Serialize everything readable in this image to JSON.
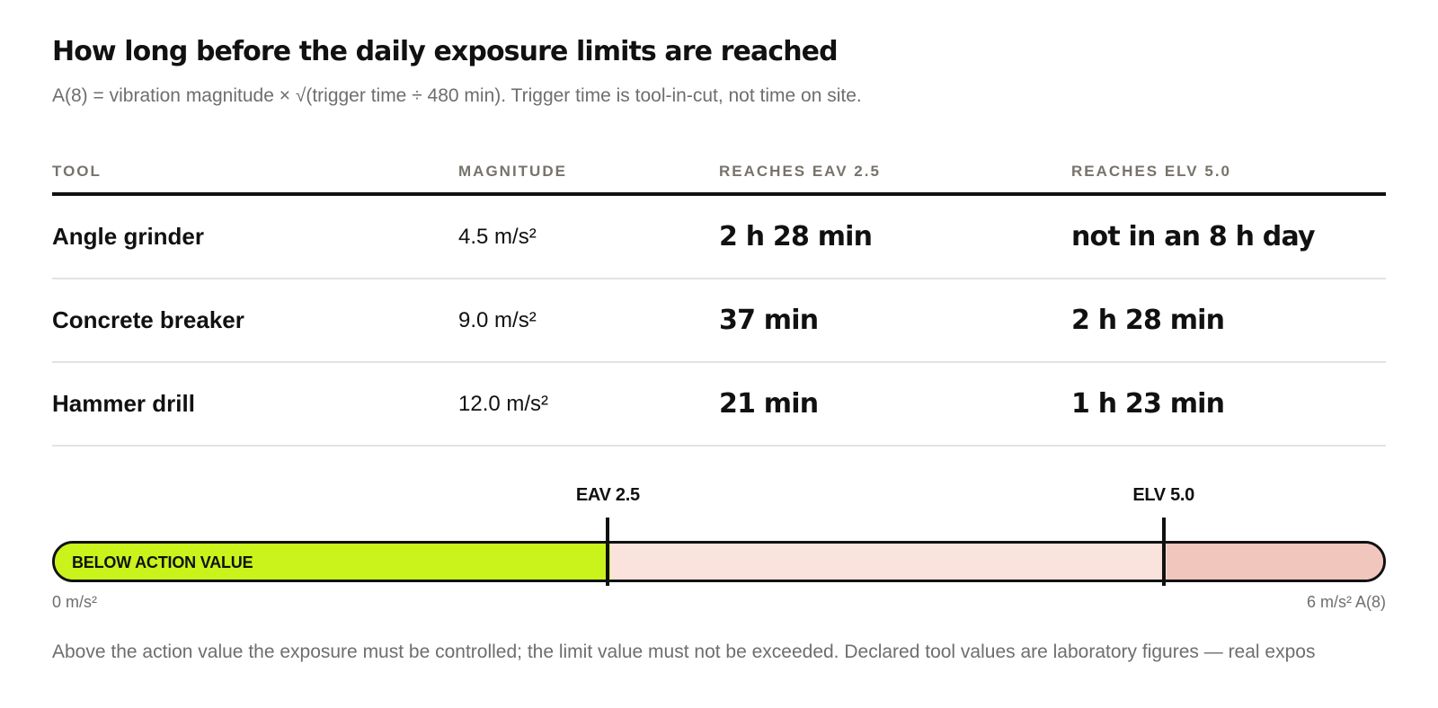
{
  "header": {
    "title": "How long before the daily exposure limits are reached",
    "subtitle": "A(8) = vibration magnitude × √(trigger time ÷ 480 min). Trigger time is tool-in-cut, not time on site."
  },
  "table": {
    "columns": [
      "TOOL",
      "MAGNITUDE",
      "REACHES EAV 2.5",
      "REACHES ELV 5.0"
    ],
    "rows": [
      {
        "tool": "Angle grinder",
        "magnitude": "4.5 m/s²",
        "eav": "2 h 28 min",
        "elv": "not in an 8 h day"
      },
      {
        "tool": "Concrete breaker",
        "magnitude": "9.0 m/s²",
        "eav": "37 min",
        "elv": "2 h 28 min"
      },
      {
        "tool": "Hammer drill",
        "magnitude": "12.0 m/s²",
        "eav": "21 min",
        "elv": "1 h 23 min"
      }
    ]
  },
  "scale": {
    "min": 0,
    "max": 6,
    "eav": 2.5,
    "elv": 5.0,
    "eav_label": "EAV 2.5",
    "elv_label": "ELV 5.0",
    "zone_label": "BELOW ACTION VALUE",
    "min_label": "0 m/s²",
    "max_label": "6 m/s² A(8)",
    "colors": {
      "below": "#c9f31a",
      "between": "#f9e3dc",
      "above": "#f1c6bd",
      "outline": "#111111"
    }
  },
  "footnote": "Above the action value the exposure must be controlled; the limit value must not be exceeded. Declared tool values are laboratory figures — real expos"
}
